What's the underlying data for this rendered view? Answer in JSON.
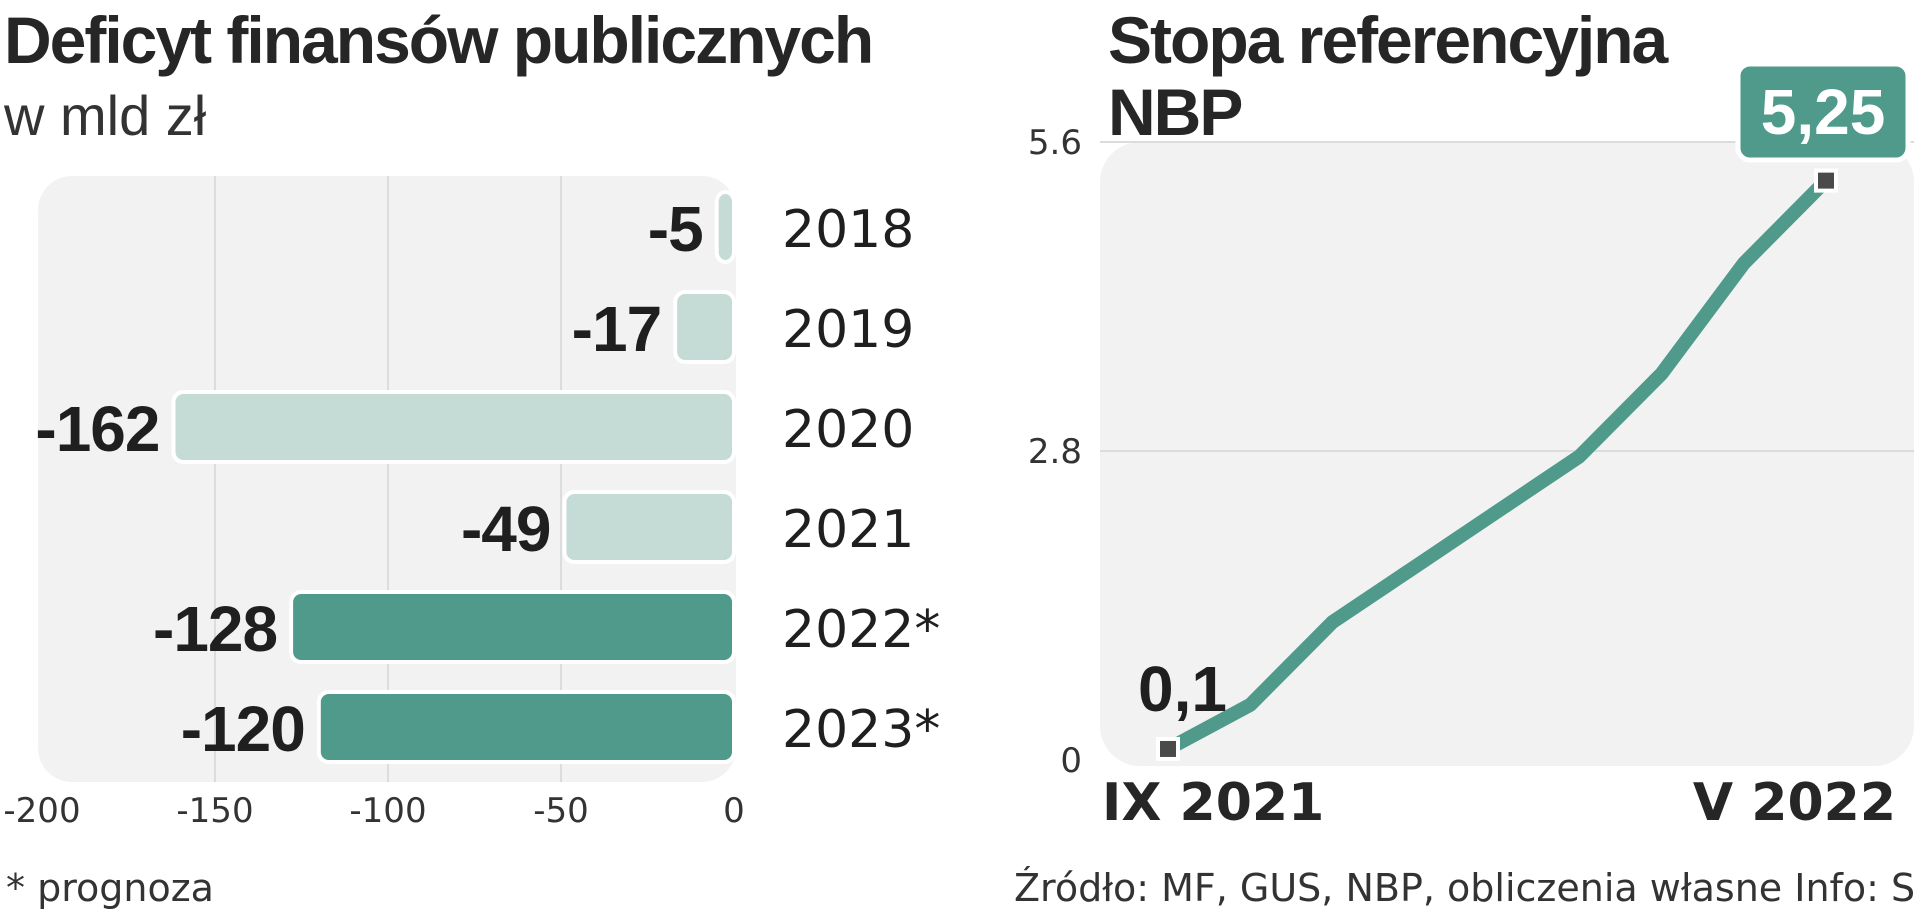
{
  "colors": {
    "accent": "#4f9a8a",
    "light_bar": "#c4dcd5",
    "panel": "#f2f2f2",
    "point": "#4a4a4a"
  },
  "left": {
    "title": "Deficyt finansów publicznych",
    "subtitle": "w mld zł"
  },
  "right": {
    "title": "Stopa referencyjna NBP"
  },
  "footnote": "* prognoza",
  "source": "Źródło: MF, GUS, NBP, obliczenia własne  Info: S",
  "chart_data": [
    {
      "type": "bar",
      "orientation": "horizontal",
      "title": "Deficyt finansów publicznych",
      "subtitle": "w mld zł",
      "categories": [
        "2018",
        "2019",
        "2020",
        "2021",
        "2022*",
        "2023*"
      ],
      "values": [
        -5,
        -17,
        -162,
        -49,
        -128,
        -120
      ],
      "value_labels": [
        "-5",
        "-17",
        "-162",
        "-49",
        "-128",
        "-120"
      ],
      "forecast": [
        false,
        false,
        false,
        false,
        true,
        true
      ],
      "xlim": [
        -200,
        0
      ],
      "xticks": [
        -200,
        -150,
        -100,
        -50,
        0
      ],
      "xtick_labels": [
        "-200",
        "-150",
        "-100",
        "-50",
        "0"
      ],
      "grid": true,
      "legend_note": "* prognoza"
    },
    {
      "type": "line",
      "title": "Stopa referencyjna NBP",
      "unit": "%",
      "x_start_label": "IX 2021",
      "x_end_label": "V 2022",
      "x": [
        0,
        1,
        2,
        3,
        4,
        5,
        6,
        7,
        8
      ],
      "y": [
        0.1,
        0.5,
        1.25,
        1.75,
        2.25,
        2.75,
        3.5,
        4.5,
        5.25
      ],
      "start_value_label": "0,1",
      "end_value_label": "5,25",
      "ylim": [
        0,
        5.6
      ],
      "yticks": [
        0,
        2.8,
        5.6
      ],
      "ytick_labels": [
        "0",
        "2.8",
        "5.6"
      ],
      "grid": true
    }
  ]
}
